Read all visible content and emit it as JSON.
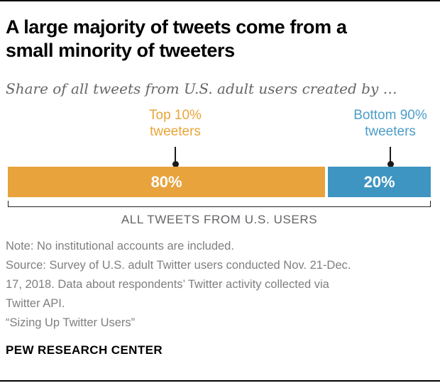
{
  "header": {
    "title_lines": [
      "A large majority of tweets come from a",
      "small minority of tweeters"
    ],
    "title_full": "A large majority of tweets come from a small minority of tweeters",
    "subtitle": "Share of all tweets from U.S. adult users created by …"
  },
  "chart": {
    "series_labels": [
      "Top 10%\ntweeters",
      "Bottom 90%\ntweeters"
    ],
    "data_labels": [
      "80%",
      "20%"
    ],
    "axis_label": "ALL TWEETS FROM U.S. USERS",
    "label_colors": [
      "#EAA437",
      "#4B9EC9"
    ]
  },
  "chart_data": {
    "type": "bar",
    "orientation": "horizontal-stacked",
    "title": "A large majority of tweets come from a small minority of tweeters",
    "subtitle": "Share of all tweets from U.S. adult users created by …",
    "categories": [
      "Top 10% tweeters",
      "Bottom 90% tweeters"
    ],
    "values": [
      80,
      20
    ],
    "unit": "%",
    "data_labels": [
      "80%",
      "20%"
    ],
    "colors": [
      "#E8A33D",
      "#3E95C1"
    ],
    "bar_axis_label": "ALL TWEETS FROM U.S. USERS",
    "legend_position": "above-bar-with-leader-lines",
    "grid": false
  },
  "notes": {
    "text": "Note: No institutional accounts are included.\nSource: Survey of U.S. adult Twitter users conducted Nov. 21-Dec.\n17, 2018. Data about respondents’ Twitter activity collected via\nTwitter API.\n“Sizing Up Twitter Users”"
  },
  "footer": {
    "label": "PEW RESEARCH CENTER"
  }
}
